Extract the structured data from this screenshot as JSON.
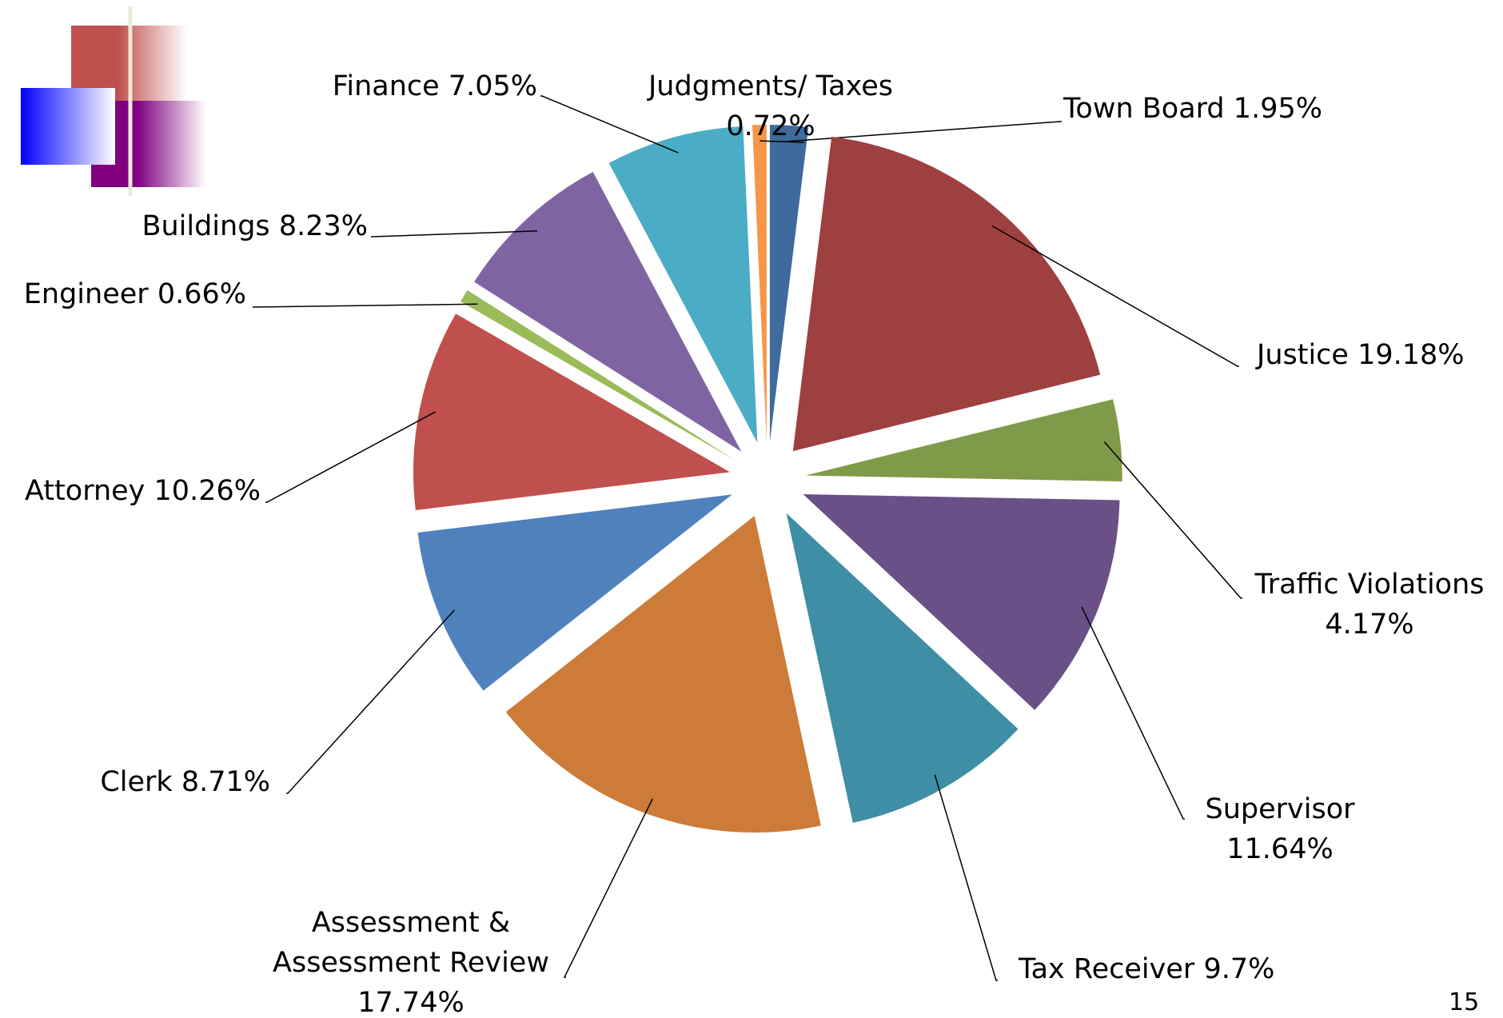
{
  "chart_data": {
    "type": "pie",
    "categories": [
      "Town Board",
      "Justice",
      "Traffic Violations",
      "Supervisor",
      "Tax Receiver",
      "Assessment & Assessment Review",
      "Clerk",
      "Attorney",
      "Engineer",
      "Buildings",
      "Finance",
      "Judgments/ Taxes"
    ],
    "values": [
      1.95,
      19.18,
      4.17,
      11.64,
      9.7,
      17.74,
      8.71,
      10.26,
      0.66,
      8.23,
      7.05,
      0.72
    ],
    "value_labels": [
      "1.95%",
      "19.18%",
      "4.17%",
      "11.64%",
      "9.7%",
      "17.74%",
      "8.71%",
      "10.26%",
      "0.66%",
      "8.23%",
      "7.05%",
      "0.72%"
    ],
    "colors": [
      "#3e6a9c",
      "#9e4040",
      "#7f9a48",
      "#6a5087",
      "#3e8ea5",
      "#cd7b38",
      "#4f81bd",
      "#c0504d",
      "#9bbb59",
      "#8064a2",
      "#4bacc6",
      "#f79646"
    ]
  },
  "page_number": "15"
}
